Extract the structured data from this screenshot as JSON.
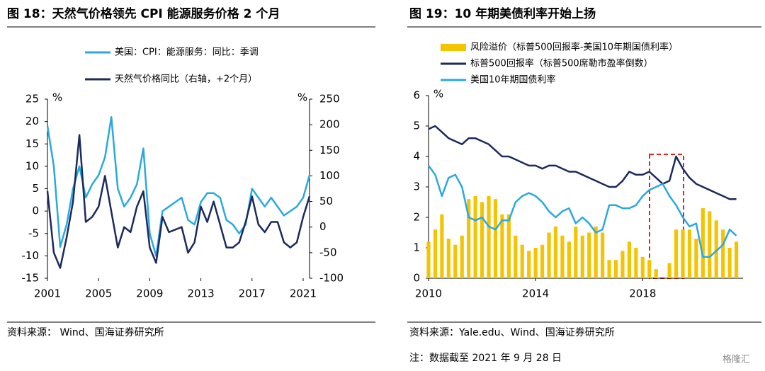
{
  "chart_data": [
    {
      "type": "line",
      "title": "图 18：天然气价格领先 CPI 能源服务价格 2 个月",
      "source": "资料来源：   Wind、国海证券研究所",
      "y_label": "%",
      "y2_label": "%",
      "x": [
        2001,
        2001.5,
        2002,
        2002.5,
        2003,
        2003.5,
        2004,
        2004.5,
        2005,
        2005.5,
        2006,
        2006.5,
        2007,
        2007.5,
        2008,
        2008.5,
        2009,
        2009.5,
        2010,
        2010.5,
        2011,
        2011.5,
        2012,
        2012.5,
        2013,
        2013.5,
        2014,
        2014.5,
        2015,
        2015.5,
        2016,
        2016.5,
        2017,
        2017.5,
        2018,
        2018.5,
        2019,
        2019.5,
        2020,
        2020.5,
        2021,
        2021.5
      ],
      "series": [
        {
          "name": "美国：CPI：能源服务：同比：季调",
          "color": "#29a9e0",
          "values": [
            19,
            10,
            -8,
            -3,
            5,
            10,
            3,
            6,
            8,
            12,
            21,
            5,
            1,
            3,
            6,
            14,
            -5,
            -10,
            0,
            1,
            2,
            3,
            -2,
            -3,
            2,
            4,
            4,
            3,
            -2,
            -3,
            -5,
            -3,
            5,
            3,
            1,
            3,
            1,
            -1,
            0,
            1,
            3,
            8
          ]
        },
        {
          "name": "天然气价格同比（右轴，+2个月）",
          "color": "#1c2a5c",
          "axis": "y2",
          "values": [
            70,
            -50,
            -80,
            -20,
            50,
            180,
            10,
            20,
            40,
            100,
            30,
            -40,
            0,
            -10,
            40,
            70,
            -40,
            -70,
            20,
            -10,
            -5,
            0,
            -50,
            -30,
            40,
            10,
            50,
            5,
            -40,
            -40,
            -30,
            10,
            60,
            5,
            -10,
            10,
            10,
            -30,
            -40,
            -30,
            20,
            60
          ]
        }
      ],
      "xlim": [
        2001,
        2021.5
      ],
      "xticks": [
        2001,
        2005,
        2009,
        2013,
        2017,
        2021
      ],
      "ylim": [
        -15,
        25
      ],
      "yticks": [
        -15,
        -10,
        -5,
        0,
        5,
        10,
        15,
        20,
        25
      ],
      "y2lim": [
        -100,
        250
      ],
      "y2ticks": [
        -100,
        -50,
        0,
        50,
        100,
        150,
        200,
        250
      ]
    },
    {
      "type": "bar-line",
      "title": "图 19：10 年期美债利率开始上扬",
      "source": "资料来源：Yale.edu、Wind、国海证券研究所",
      "note": "注：数据截至 2021 年 9 月 28 日",
      "y_label": "%",
      "x": [
        2010,
        2010.25,
        2010.5,
        2010.75,
        2011,
        2011.25,
        2011.5,
        2011.75,
        2012,
        2012.25,
        2012.5,
        2012.75,
        2013,
        2013.25,
        2013.5,
        2013.75,
        2014,
        2014.25,
        2014.5,
        2014.75,
        2015,
        2015.25,
        2015.5,
        2015.75,
        2016,
        2016.25,
        2016.5,
        2016.75,
        2017,
        2017.25,
        2017.5,
        2017.75,
        2018,
        2018.25,
        2018.5,
        2018.75,
        2019,
        2019.25,
        2019.5,
        2019.75,
        2020,
        2020.25,
        2020.5,
        2020.75,
        2021,
        2021.25,
        2021.5
      ],
      "series": [
        {
          "name": "风险溢价（标普500回报率-美国10年期国债利率）",
          "color": "#f5c400",
          "kind": "bar",
          "values": [
            1.2,
            1.6,
            2.1,
            1.3,
            1.1,
            1.4,
            2.6,
            2.7,
            2.5,
            2.7,
            2.6,
            2.1,
            2.1,
            1.4,
            1.1,
            0.9,
            1.0,
            1.1,
            1.5,
            1.7,
            1.4,
            1.2,
            1.7,
            1.4,
            1.5,
            1.7,
            1.5,
            0.6,
            0.6,
            0.9,
            1.2,
            1.0,
            0.7,
            0.6,
            0.3,
            0.0,
            0.5,
            1.6,
            1.6,
            1.6,
            1.3,
            2.3,
            2.2,
            1.9,
            1.6,
            1.0,
            1.2
          ]
        },
        {
          "name": "标普500回报率（标普500席勒市盈率倒数）",
          "color": "#1c2a5c",
          "kind": "line",
          "values": [
            4.9,
            5.0,
            4.8,
            4.6,
            4.5,
            4.4,
            4.6,
            4.6,
            4.5,
            4.4,
            4.2,
            4.0,
            4.0,
            3.9,
            3.8,
            3.7,
            3.7,
            3.6,
            3.7,
            3.7,
            3.6,
            3.5,
            3.5,
            3.4,
            3.3,
            3.2,
            3.1,
            3.0,
            3.0,
            3.2,
            3.5,
            3.4,
            3.4,
            3.5,
            3.3,
            3.1,
            3.2,
            4.0,
            3.6,
            3.3,
            3.1,
            3.0,
            2.9,
            2.8,
            2.7,
            2.6,
            2.6
          ]
        },
        {
          "name": "美国10年期国债利率",
          "color": "#29a9e0",
          "kind": "line",
          "values": [
            3.7,
            3.4,
            2.7,
            3.3,
            3.4,
            3.0,
            2.0,
            1.9,
            2.0,
            1.7,
            1.6,
            1.9,
            1.9,
            2.5,
            2.7,
            2.8,
            2.7,
            2.5,
            2.2,
            2.0,
            2.2,
            2.3,
            1.8,
            2.0,
            1.8,
            1.5,
            1.6,
            2.4,
            2.4,
            2.3,
            2.3,
            2.4,
            2.7,
            2.9,
            3.0,
            3.1,
            2.7,
            2.4,
            2.0,
            1.7,
            1.8,
            0.7,
            0.7,
            0.9,
            1.1,
            1.6,
            1.4
          ]
        }
      ],
      "xlim": [
        2010,
        2021.75
      ],
      "xticks": [
        2010,
        2014,
        2018
      ],
      "ylim": [
        0,
        6
      ],
      "yticks": [
        0,
        1,
        2,
        3,
        4,
        5,
        6
      ]
    }
  ],
  "watermark": "格隆汇"
}
